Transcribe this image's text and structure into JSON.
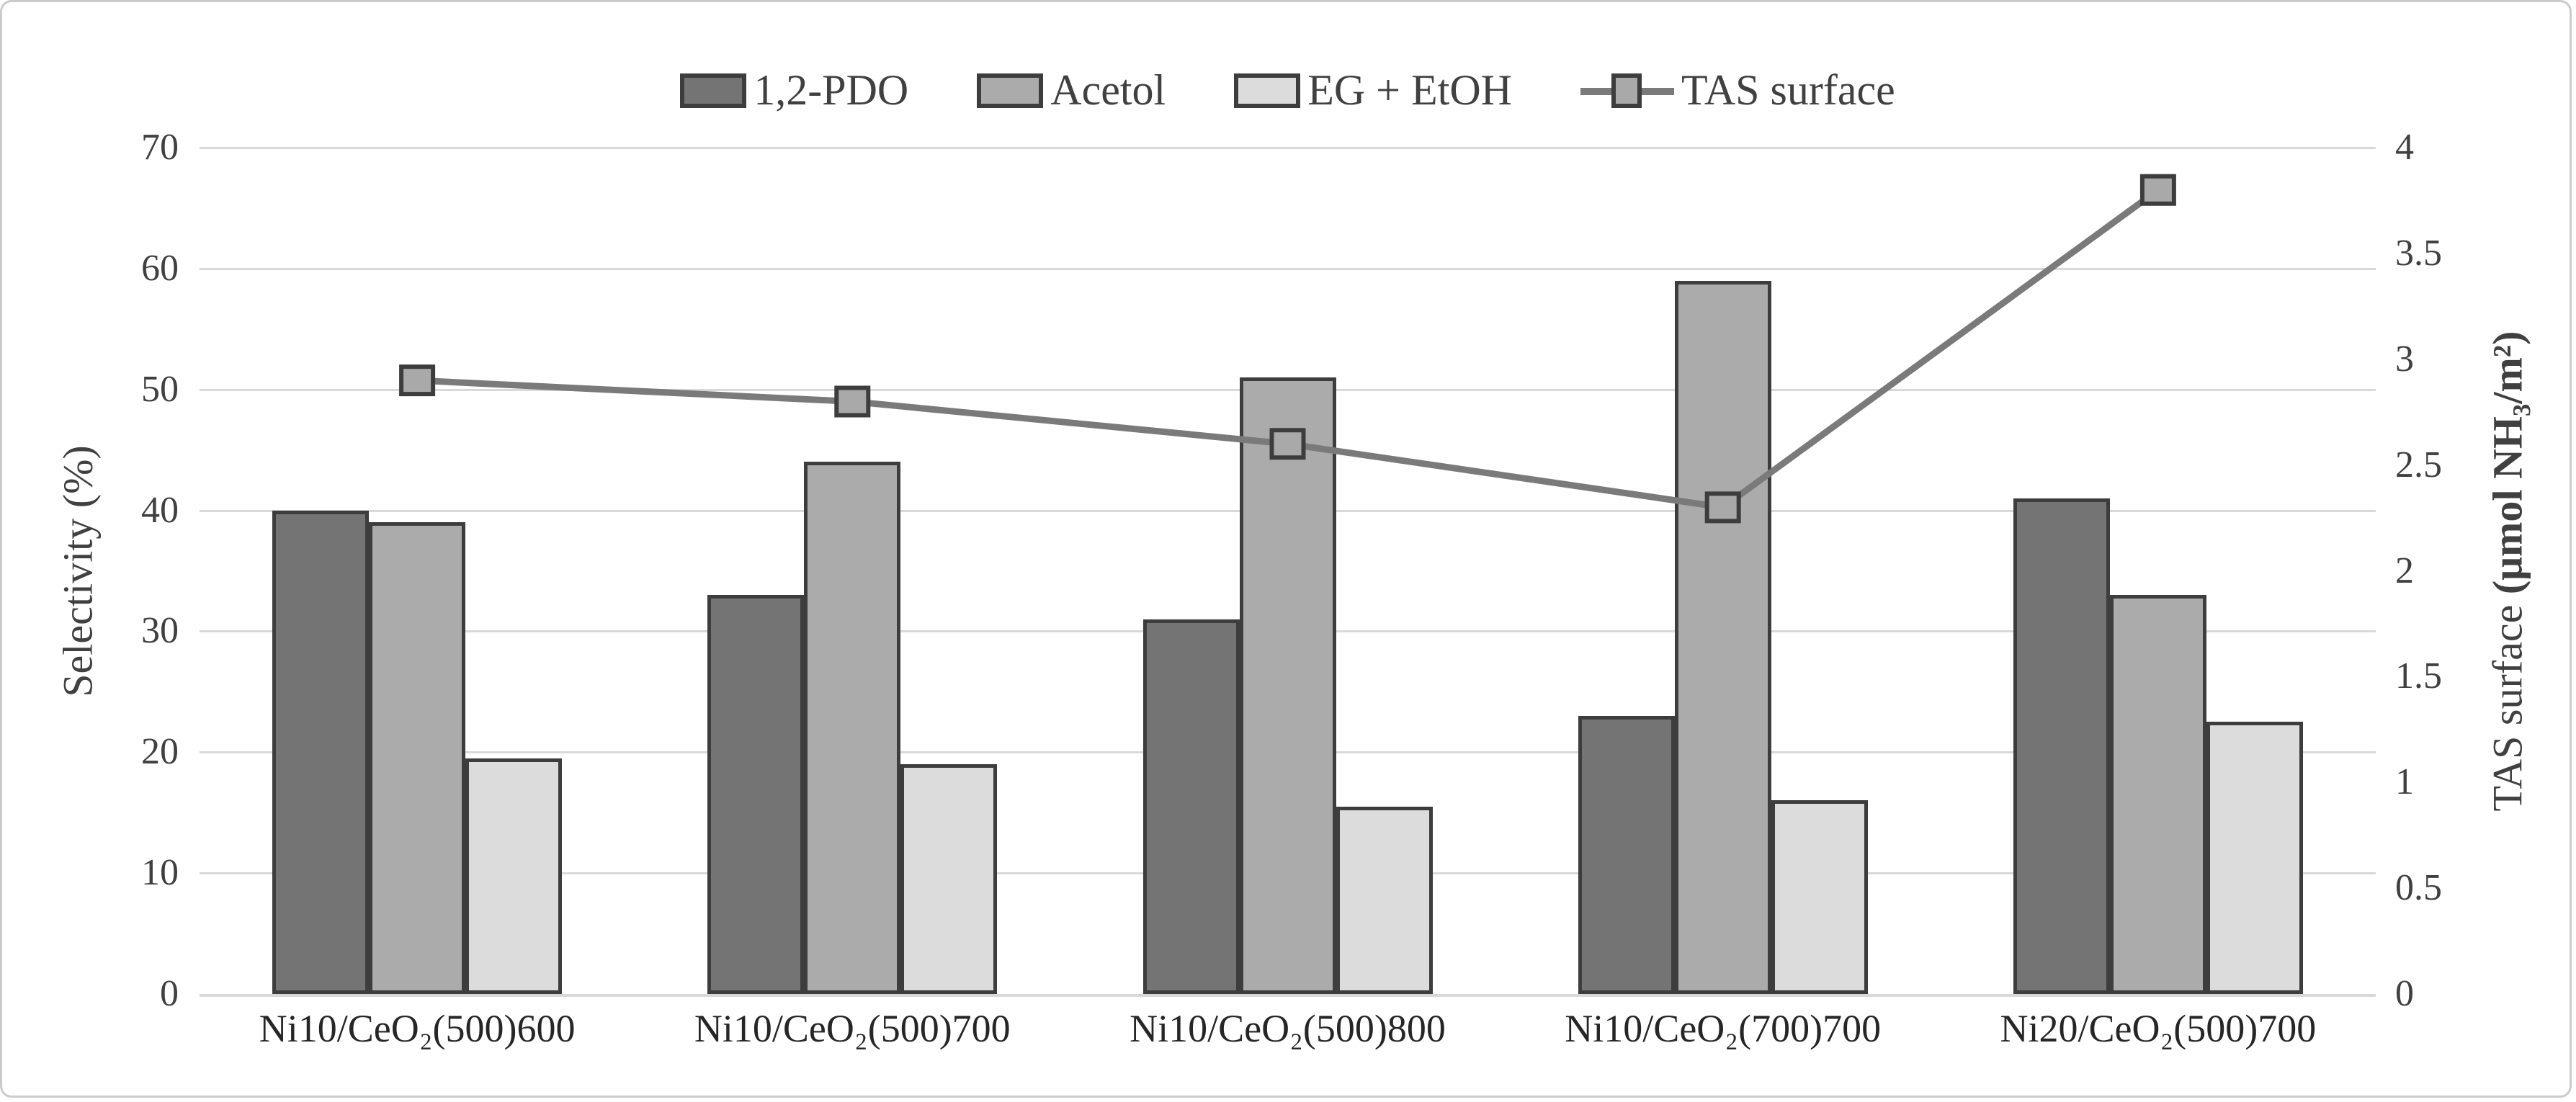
{
  "figure": {
    "background": "#ffffff",
    "border_color": "#cbcbcb"
  },
  "legend": {
    "items": [
      {
        "label": "1,2-PDO",
        "swatch": "box",
        "color": "#747474"
      },
      {
        "label": "Acetol",
        "swatch": "box",
        "color": "#ababab"
      },
      {
        "label": "EG + EtOH",
        "swatch": "box",
        "color": "#dcdcdc"
      },
      {
        "label": "TAS surface",
        "swatch": "line-marker",
        "color": "#7a7a7a",
        "marker_color": "#a9a9a9"
      }
    ]
  },
  "chart_data": {
    "type": "bar+line",
    "categories": [
      "Ni10/CeO₂(500)600",
      "Ni10/CeO₂(500)700",
      "Ni10/CeO₂(500)800",
      "Ni10/CeO₂(700)700",
      "Ni20/CeO₂(500)700"
    ],
    "series": [
      {
        "name": "1,2-PDO",
        "type": "bar",
        "axis": "left",
        "color": "#747474",
        "values": [
          40,
          33,
          31,
          23,
          41
        ]
      },
      {
        "name": "Acetol",
        "type": "bar",
        "axis": "left",
        "color": "#ababab",
        "values": [
          39,
          44,
          51,
          59,
          33
        ]
      },
      {
        "name": "EG + EtOH",
        "type": "bar",
        "axis": "left",
        "color": "#dcdcdc",
        "values": [
          19.5,
          19,
          15.5,
          16,
          22.5
        ]
      },
      {
        "name": "TAS surface",
        "type": "line",
        "axis": "right",
        "color": "#7a7a7a",
        "values": [
          2.9,
          2.8,
          2.6,
          2.3,
          3.8
        ]
      }
    ],
    "left_axis": {
      "title": "Selectivity (%)",
      "min": 0,
      "max": 70,
      "step": 10,
      "ticks": [
        "0",
        "10",
        "20",
        "30",
        "40",
        "50",
        "60",
        "70"
      ]
    },
    "right_axis": {
      "title_normal": "TAS surface ",
      "title_bold": "(μmol NH₃/m²)",
      "min": 0,
      "max": 4,
      "step": 0.5,
      "ticks": [
        "0",
        "0.5",
        "1",
        "1.5",
        "2",
        "2.5",
        "3",
        "3.5",
        "4"
      ]
    },
    "grid": true,
    "legend_position": "top",
    "colors": {
      "bar_border": "#3d3d3d",
      "gridline": "#d9d9d9",
      "line_series": "#7a7a7a",
      "marker_fill": "#a9a9a9",
      "tick_text": "#404040",
      "category_text": "#262626"
    }
  }
}
